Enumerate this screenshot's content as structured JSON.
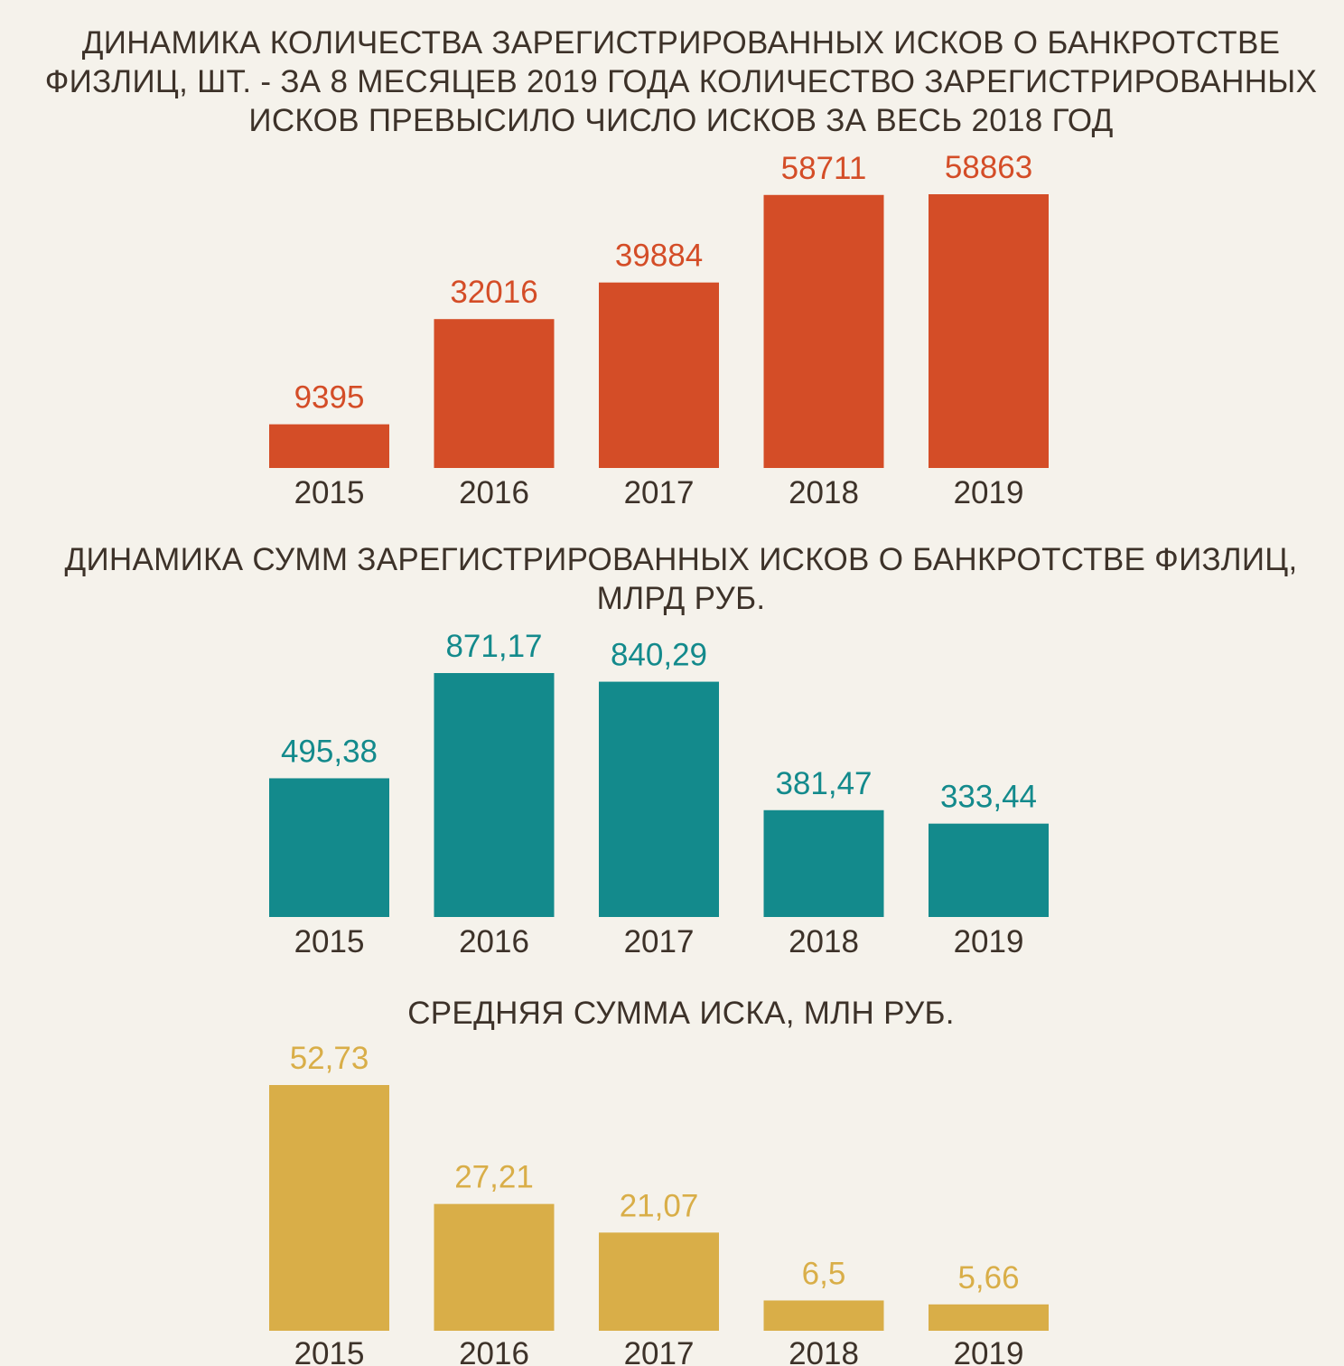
{
  "colors": {
    "background": "#f5f2eb",
    "title": "#3d3229",
    "tick": "#3d3229"
  },
  "chart_data": [
    {
      "type": "bar",
      "title": "ДИНАМИКА КОЛИЧЕСТВА ЗАРЕГИСТРИРОВАННЫХ ИСКОВ О БАНКРОТСТВЕ ФИЗЛИЦ, ШТ. - ЗА 8 МЕСЯЦЕВ 2019 ГОДА КОЛИЧЕСТВО ЗАРЕГИСТРИРОВАННЫХ ИСКОВ ПРЕВЫСИЛО ЧИСЛО ИСКОВ ЗА ВЕСЬ 2018 ГОД",
      "categories": [
        "2015",
        "2016",
        "2017",
        "2018",
        "2019"
      ],
      "values": [
        9395,
        32016,
        39884,
        58711,
        58863
      ],
      "value_labels": [
        "9395",
        "32016",
        "39884",
        "58711",
        "58863"
      ],
      "color": "#d44d27",
      "ylim": [
        0,
        58863
      ],
      "grid": false,
      "legend": "none"
    },
    {
      "type": "bar",
      "title": "ДИНАМИКА СУММ ЗАРЕГИСТРИРОВАННЫХ ИСКОВ О БАНКРОТСТВЕ ФИЗЛИЦ, МЛРД РУБ.",
      "categories": [
        "2015",
        "2016",
        "2017",
        "2018",
        "2019"
      ],
      "values": [
        495.38,
        871.17,
        840.29,
        381.47,
        333.44
      ],
      "value_labels": [
        "495,38",
        "871,17",
        "840,29",
        "381,47",
        "333,44"
      ],
      "color": "#138a8c",
      "ylim": [
        0,
        871.17
      ],
      "grid": false,
      "legend": "none"
    },
    {
      "type": "bar",
      "title": "СРЕДНЯЯ СУММА ИСКА, МЛН РУБ.",
      "categories": [
        "2015",
        "2016",
        "2017",
        "2018",
        "2019"
      ],
      "values": [
        52.73,
        27.21,
        21.07,
        6.5,
        5.66
      ],
      "value_labels": [
        "52,73",
        "27,21",
        "21,07",
        "6,5",
        "5,66"
      ],
      "color": "#d9ae48",
      "ylim": [
        0,
        52.73
      ],
      "grid": false,
      "legend": "none"
    }
  ]
}
